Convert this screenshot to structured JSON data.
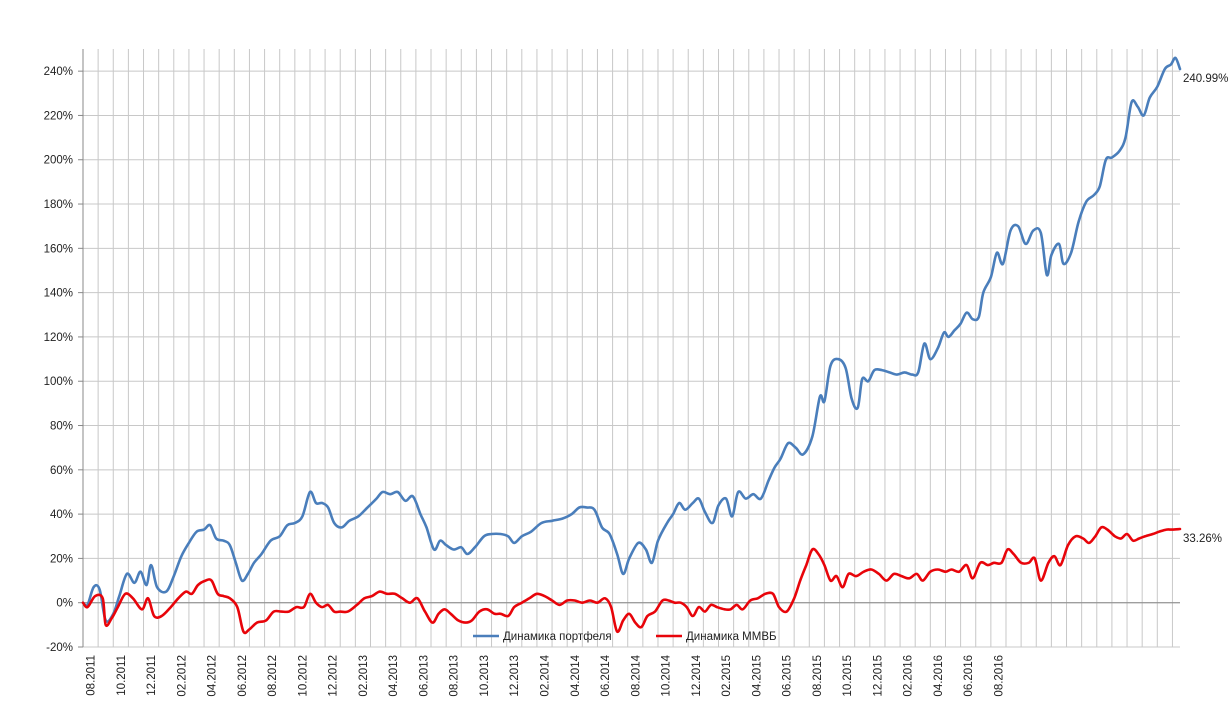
{
  "chart_data": {
    "type": "line",
    "title": "",
    "xlabel": "",
    "ylabel": "",
    "ylim": [
      -20,
      250
    ],
    "y_ticks": [
      "-20%",
      "0%",
      "20%",
      "40%",
      "60%",
      "80%",
      "100%",
      "120%",
      "140%",
      "160%",
      "180%",
      "200%",
      "220%",
      "240%"
    ],
    "x_tick_labels": [
      "08.2011",
      "10.2011",
      "12.2011",
      "02.2012",
      "04.2012",
      "06.2012",
      "08.2012",
      "10.2012",
      "12.2012",
      "02.2013",
      "04.2013",
      "06.2013",
      "08.2013",
      "10.2013",
      "12.2013",
      "02.2014",
      "04.2014",
      "06.2014",
      "08.2014",
      "10.2014",
      "12.2014",
      "02.2015",
      "04.2015",
      "06.2015",
      "08.2015",
      "10.2015",
      "12.2015",
      "02.2016",
      "04.2016",
      "06.2016",
      "08.2016"
    ],
    "x_unit": "month index from 08.2011 (labels every 2 months)",
    "grid": true,
    "legend_position": "bottom-center",
    "series": [
      {
        "name": "Динамика портфеля",
        "color": "#4a7ebb",
        "end_label": "240.99%",
        "points": [
          [
            0,
            0
          ],
          [
            0.3,
            -1
          ],
          [
            0.7,
            7
          ],
          [
            1.1,
            6
          ],
          [
            1.5,
            -8
          ],
          [
            2.0,
            -5
          ],
          [
            2.4,
            3
          ],
          [
            2.9,
            13
          ],
          [
            3.4,
            9
          ],
          [
            3.8,
            14
          ],
          [
            4.2,
            8
          ],
          [
            4.5,
            17
          ],
          [
            4.9,
            7
          ],
          [
            5.5,
            5
          ],
          [
            6.0,
            12
          ],
          [
            6.5,
            21
          ],
          [
            7.0,
            27
          ],
          [
            7.5,
            32
          ],
          [
            8.0,
            33
          ],
          [
            8.4,
            35
          ],
          [
            8.8,
            29
          ],
          [
            9.3,
            28
          ],
          [
            9.7,
            26
          ],
          [
            10.1,
            18
          ],
          [
            10.5,
            10
          ],
          [
            10.9,
            13
          ],
          [
            11.3,
            18
          ],
          [
            11.8,
            22
          ],
          [
            12.4,
            28
          ],
          [
            13.0,
            30
          ],
          [
            13.5,
            35
          ],
          [
            14.0,
            36
          ],
          [
            14.5,
            39
          ],
          [
            15.0,
            50
          ],
          [
            15.4,
            45
          ],
          [
            15.8,
            45
          ],
          [
            16.2,
            43
          ],
          [
            16.6,
            36
          ],
          [
            17.1,
            34
          ],
          [
            17.6,
            37
          ],
          [
            18.2,
            39
          ],
          [
            18.8,
            43
          ],
          [
            19.4,
            47
          ],
          [
            19.8,
            50
          ],
          [
            20.3,
            49
          ],
          [
            20.8,
            50
          ],
          [
            21.3,
            46
          ],
          [
            21.8,
            48
          ],
          [
            22.3,
            40
          ],
          [
            22.7,
            34
          ],
          [
            23.2,
            24
          ],
          [
            23.6,
            28
          ],
          [
            24.0,
            26
          ],
          [
            24.5,
            24
          ],
          [
            25.0,
            25
          ],
          [
            25.4,
            22
          ],
          [
            25.9,
            25
          ],
          [
            26.5,
            30
          ],
          [
            27.0,
            31
          ],
          [
            27.6,
            31
          ],
          [
            28.1,
            30
          ],
          [
            28.5,
            27
          ],
          [
            29.0,
            30
          ],
          [
            29.6,
            32
          ],
          [
            30.3,
            36
          ],
          [
            31.0,
            37
          ],
          [
            31.7,
            38
          ],
          [
            32.3,
            40
          ],
          [
            32.8,
            43
          ],
          [
            33.3,
            43
          ],
          [
            33.8,
            42
          ],
          [
            34.3,
            34
          ],
          [
            34.8,
            31
          ],
          [
            35.3,
            22
          ],
          [
            35.7,
            13
          ],
          [
            36.1,
            20
          ],
          [
            36.7,
            27
          ],
          [
            37.2,
            24
          ],
          [
            37.6,
            18
          ],
          [
            38.0,
            28
          ],
          [
            38.6,
            36
          ],
          [
            39.0,
            40
          ],
          [
            39.4,
            45
          ],
          [
            39.8,
            42
          ],
          [
            40.3,
            45
          ],
          [
            40.7,
            47
          ],
          [
            41.1,
            41
          ],
          [
            41.6,
            36
          ],
          [
            42.0,
            44
          ],
          [
            42.5,
            47
          ],
          [
            42.9,
            39
          ],
          [
            43.3,
            50
          ],
          [
            43.8,
            47
          ],
          [
            44.3,
            49
          ],
          [
            44.8,
            47
          ],
          [
            45.3,
            55
          ],
          [
            45.7,
            61
          ],
          [
            46.1,
            65
          ],
          [
            46.6,
            72
          ],
          [
            47.1,
            70
          ],
          [
            47.6,
            67
          ],
          [
            48.2,
            75
          ],
          [
            48.7,
            93
          ],
          [
            49.0,
            91
          ],
          [
            49.4,
            107
          ],
          [
            49.9,
            110
          ],
          [
            50.4,
            106
          ],
          [
            50.8,
            92
          ],
          [
            51.2,
            88
          ],
          [
            51.5,
            101
          ],
          [
            51.9,
            100
          ],
          [
            52.3,
            105
          ],
          [
            52.8,
            105
          ],
          [
            53.3,
            104
          ],
          [
            53.8,
            103
          ],
          [
            54.3,
            104
          ],
          [
            54.8,
            103
          ],
          [
            55.2,
            104
          ],
          [
            55.6,
            117
          ],
          [
            56.0,
            110
          ],
          [
            56.5,
            115
          ],
          [
            56.9,
            122
          ],
          [
            57.2,
            120
          ],
          [
            57.6,
            123
          ],
          [
            58.0,
            126
          ],
          [
            58.4,
            131
          ],
          [
            58.8,
            128
          ],
          [
            59.2,
            129
          ],
          [
            59.5,
            140
          ],
          [
            60.0,
            147
          ],
          [
            60.4,
            158
          ],
          [
            60.8,
            153
          ],
          [
            61.3,
            168
          ],
          [
            61.8,
            170
          ],
          [
            62.3,
            162
          ],
          [
            62.8,
            168
          ],
          [
            63.3,
            167
          ],
          [
            63.7,
            148
          ],
          [
            64.0,
            157
          ],
          [
            64.5,
            162
          ],
          [
            64.8,
            153
          ],
          [
            65.3,
            158
          ],
          [
            65.8,
            172
          ],
          [
            66.3,
            181
          ],
          [
            66.8,
            184
          ],
          [
            67.2,
            188
          ],
          [
            67.6,
            200
          ],
          [
            68.0,
            201
          ],
          [
            68.5,
            204
          ],
          [
            68.9,
            210
          ],
          [
            69.3,
            226
          ],
          [
            69.7,
            224
          ],
          [
            70.1,
            220
          ],
          [
            70.5,
            228
          ],
          [
            71.0,
            233
          ],
          [
            71.5,
            241
          ],
          [
            71.9,
            243
          ],
          [
            72.2,
            246
          ],
          [
            72.5,
            240.99
          ]
        ]
      },
      {
        "name": "Динамика ММВБ",
        "color": "#e8040a",
        "end_label": "33.26%",
        "points": [
          [
            0,
            0
          ],
          [
            0.3,
            -2
          ],
          [
            0.8,
            3
          ],
          [
            1.3,
            2
          ],
          [
            1.5,
            -10
          ],
          [
            1.9,
            -7
          ],
          [
            2.3,
            -2
          ],
          [
            2.8,
            4
          ],
          [
            3.3,
            2
          ],
          [
            3.9,
            -3
          ],
          [
            4.3,
            2
          ],
          [
            4.7,
            -6
          ],
          [
            5.2,
            -6
          ],
          [
            5.8,
            -2
          ],
          [
            6.3,
            2
          ],
          [
            6.8,
            5
          ],
          [
            7.2,
            4
          ],
          [
            7.6,
            8
          ],
          [
            8.1,
            10
          ],
          [
            8.5,
            10
          ],
          [
            8.9,
            4
          ],
          [
            9.3,
            3
          ],
          [
            9.7,
            2
          ],
          [
            10.2,
            -2
          ],
          [
            10.6,
            -13
          ],
          [
            11.0,
            -12
          ],
          [
            11.5,
            -9
          ],
          [
            12.1,
            -8
          ],
          [
            12.6,
            -4
          ],
          [
            13.1,
            -4
          ],
          [
            13.6,
            -4
          ],
          [
            14.1,
            -2
          ],
          [
            14.6,
            -2
          ],
          [
            15.0,
            4
          ],
          [
            15.4,
            0
          ],
          [
            15.8,
            -2
          ],
          [
            16.2,
            -1
          ],
          [
            16.6,
            -4
          ],
          [
            17.0,
            -4
          ],
          [
            17.5,
            -4
          ],
          [
            18.1,
            -1
          ],
          [
            18.6,
            2
          ],
          [
            19.1,
            3
          ],
          [
            19.6,
            5
          ],
          [
            20.1,
            4
          ],
          [
            20.6,
            4
          ],
          [
            21.1,
            2
          ],
          [
            21.6,
            0
          ],
          [
            22.1,
            2
          ],
          [
            22.6,
            -4
          ],
          [
            23.1,
            -9
          ],
          [
            23.5,
            -5
          ],
          [
            23.9,
            -3
          ],
          [
            24.3,
            -5
          ],
          [
            24.8,
            -8
          ],
          [
            25.3,
            -9
          ],
          [
            25.7,
            -8
          ],
          [
            26.2,
            -4
          ],
          [
            26.7,
            -3
          ],
          [
            27.2,
            -5
          ],
          [
            27.6,
            -5
          ],
          [
            28.1,
            -6
          ],
          [
            28.5,
            -2
          ],
          [
            29.0,
            0
          ],
          [
            29.5,
            2
          ],
          [
            30.0,
            4
          ],
          [
            30.5,
            3
          ],
          [
            31.0,
            1
          ],
          [
            31.5,
            -1
          ],
          [
            32.0,
            1
          ],
          [
            32.5,
            1
          ],
          [
            33.0,
            0
          ],
          [
            33.5,
            1
          ],
          [
            34.0,
            0
          ],
          [
            34.5,
            2
          ],
          [
            34.9,
            -2
          ],
          [
            35.3,
            -13
          ],
          [
            35.7,
            -8
          ],
          [
            36.1,
            -5
          ],
          [
            36.5,
            -9
          ],
          [
            36.9,
            -11
          ],
          [
            37.3,
            -6
          ],
          [
            37.8,
            -4
          ],
          [
            38.3,
            1
          ],
          [
            38.7,
            1
          ],
          [
            39.1,
            0
          ],
          [
            39.5,
            0
          ],
          [
            39.9,
            -2
          ],
          [
            40.3,
            -6
          ],
          [
            40.7,
            -2
          ],
          [
            41.1,
            -4
          ],
          [
            41.5,
            -1
          ],
          [
            41.9,
            -2
          ],
          [
            42.4,
            -3
          ],
          [
            42.8,
            -3
          ],
          [
            43.2,
            -1
          ],
          [
            43.6,
            -3
          ],
          [
            44.1,
            1
          ],
          [
            44.6,
            2
          ],
          [
            45.1,
            4
          ],
          [
            45.6,
            4
          ],
          [
            46.0,
            -2
          ],
          [
            46.5,
            -4
          ],
          [
            47.0,
            2
          ],
          [
            47.4,
            10
          ],
          [
            47.8,
            17
          ],
          [
            48.2,
            24
          ],
          [
            48.6,
            22
          ],
          [
            49.0,
            17
          ],
          [
            49.4,
            10
          ],
          [
            49.8,
            12
          ],
          [
            50.2,
            7
          ],
          [
            50.6,
            13
          ],
          [
            51.1,
            12
          ],
          [
            51.6,
            14
          ],
          [
            52.1,
            15
          ],
          [
            52.6,
            13
          ],
          [
            53.1,
            10
          ],
          [
            53.6,
            13
          ],
          [
            54.1,
            12
          ],
          [
            54.6,
            11
          ],
          [
            55.1,
            13
          ],
          [
            55.5,
            10
          ],
          [
            56.0,
            14
          ],
          [
            56.5,
            15
          ],
          [
            57.0,
            14
          ],
          [
            57.4,
            15
          ],
          [
            57.9,
            14
          ],
          [
            58.4,
            17
          ],
          [
            58.8,
            11
          ],
          [
            59.3,
            18
          ],
          [
            59.8,
            17
          ],
          [
            60.2,
            18
          ],
          [
            60.7,
            18
          ],
          [
            61.1,
            24
          ],
          [
            61.5,
            22
          ],
          [
            62.0,
            18
          ],
          [
            62.5,
            18
          ],
          [
            62.9,
            20
          ],
          [
            63.3,
            10
          ],
          [
            63.8,
            18
          ],
          [
            64.2,
            21
          ],
          [
            64.6,
            17
          ],
          [
            65.1,
            26
          ],
          [
            65.6,
            30
          ],
          [
            66.1,
            29
          ],
          [
            66.5,
            27
          ],
          [
            66.9,
            30
          ],
          [
            67.3,
            34
          ],
          [
            67.7,
            33
          ],
          [
            68.2,
            30
          ],
          [
            68.6,
            29
          ],
          [
            69.0,
            31
          ],
          [
            69.4,
            28
          ],
          [
            69.8,
            29
          ],
          [
            70.2,
            30
          ],
          [
            70.7,
            31
          ],
          [
            71.1,
            32
          ],
          [
            71.6,
            33
          ],
          [
            72.0,
            33
          ],
          [
            72.5,
            33.26
          ]
        ]
      }
    ]
  }
}
